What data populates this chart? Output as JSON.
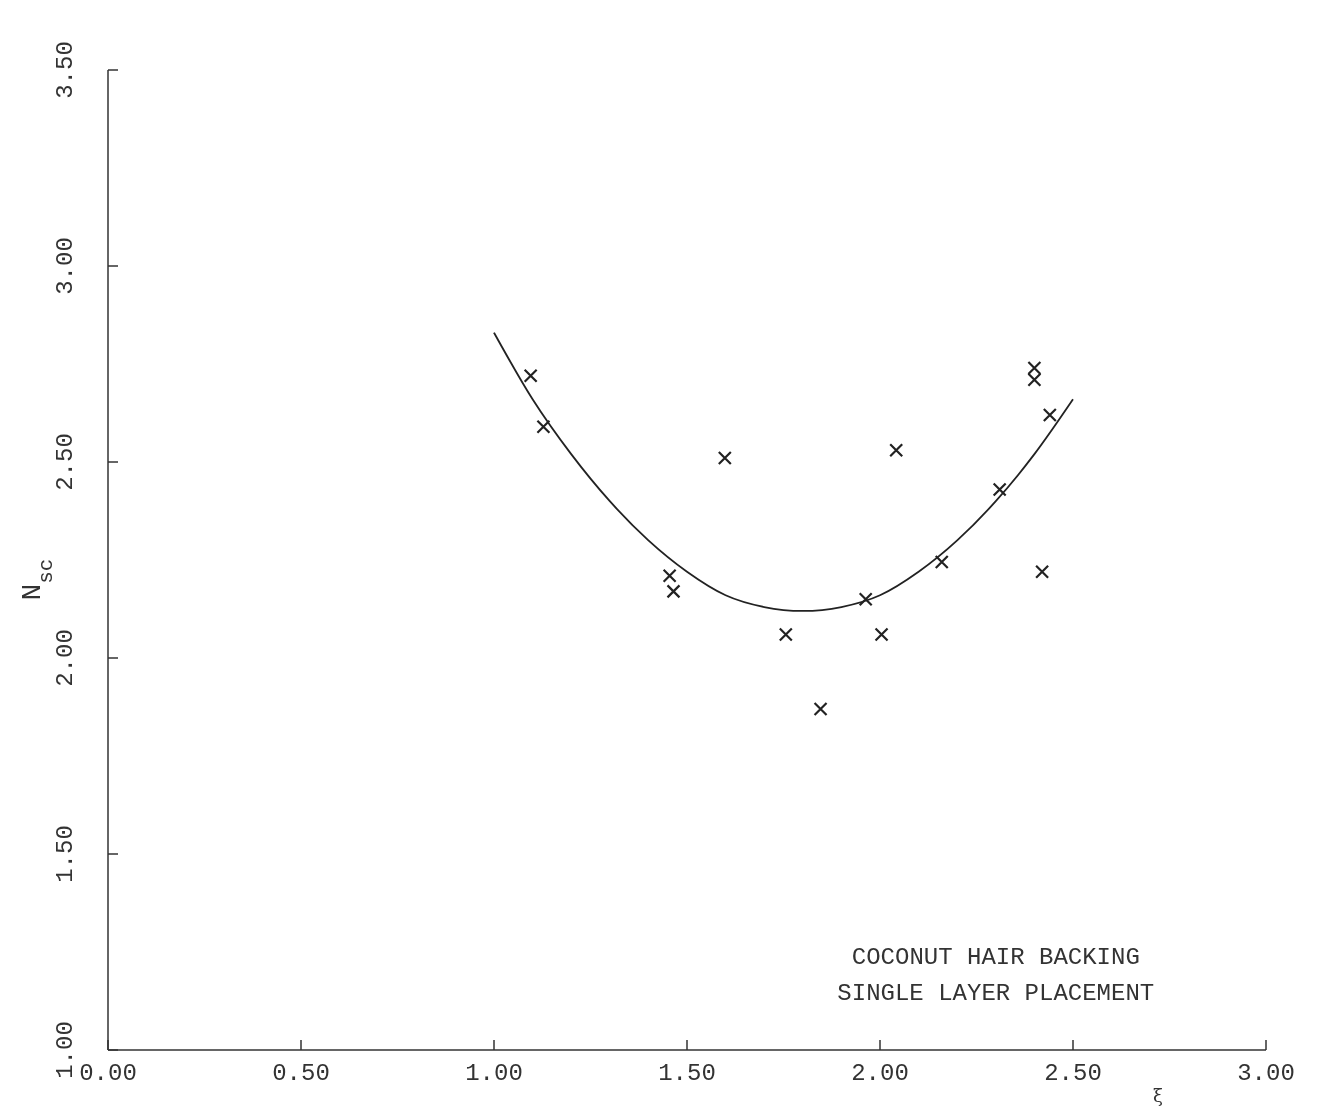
{
  "chart_data": {
    "type": "scatter",
    "xlabel": "ξ",
    "ylabel": "N$_{sc}$",
    "xlim": [
      0,
      3
    ],
    "ylim": [
      1,
      3.5
    ],
    "xticks": [
      {
        "value": 0,
        "label": "0.00"
      },
      {
        "value": 0.5,
        "label": "0.50"
      },
      {
        "value": 1,
        "label": "1.00"
      },
      {
        "value": 1.5,
        "label": "1.50"
      },
      {
        "value": 2,
        "label": "2.00"
      },
      {
        "value": 2.5,
        "label": "2.50"
      },
      {
        "value": 3,
        "label": "3.00"
      }
    ],
    "yticks": [
      {
        "value": 1,
        "label": "1.00"
      },
      {
        "value": 1.5,
        "label": "1.50"
      },
      {
        "value": 2,
        "label": "2.00"
      },
      {
        "value": 2.5,
        "label": "2.50"
      },
      {
        "value": 3,
        "label": "3.00"
      },
      {
        "value": 3.5,
        "label": "3.50"
      }
    ],
    "grid": false,
    "series": [
      {
        "color": "#222222",
        "marker": "cross",
        "x": [
          1.095,
          1.128,
          1.455,
          1.465,
          1.598,
          1.756,
          1.846,
          1.963,
          2.004,
          2.042,
          2.16,
          2.31,
          2.4,
          2.4,
          2.44,
          2.42
        ],
        "values": [
          2.72,
          2.59,
          2.21,
          2.17,
          2.51,
          2.06,
          1.87,
          2.15,
          2.06,
          2.53,
          2.245,
          2.43,
          2.74,
          2.71,
          2.62,
          2.22
        ]
      },
      {
        "type": "line",
        "color": "#222222",
        "line_style": "solid",
        "marker": "none",
        "x": [
          1.0,
          1.1,
          1.2,
          1.3,
          1.4,
          1.5,
          1.6,
          1.7,
          1.8,
          1.9,
          2.0,
          2.1,
          2.2,
          2.3,
          2.4,
          2.5
        ],
        "values": [
          2.83,
          2.66,
          2.52,
          2.4,
          2.3,
          2.22,
          2.16,
          2.13,
          2.12,
          2.13,
          2.16,
          2.22,
          2.3,
          2.4,
          2.52,
          2.66
        ]
      }
    ],
    "annotations": [
      "COCONUT HAIR BACKING",
      "SINGLE LAYER PLACEMENT"
    ]
  }
}
